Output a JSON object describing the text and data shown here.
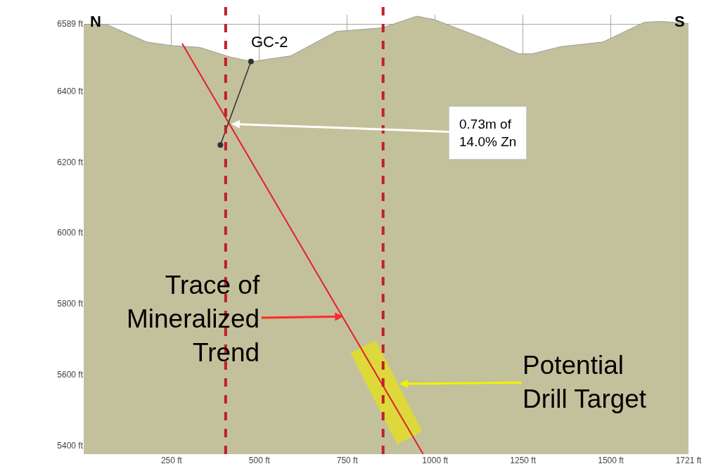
{
  "chart_data": {
    "type": "line",
    "xlim": [
      0,
      1721
    ],
    "ylim": [
      5376,
      6615
    ],
    "xticks": [
      {
        "value": 250,
        "label": "250 ft"
      },
      {
        "value": 500,
        "label": "500 ft"
      },
      {
        "value": 750,
        "label": "750 ft"
      },
      {
        "value": 1000,
        "label": "1000 ft"
      },
      {
        "value": 1250,
        "label": "1250 ft"
      },
      {
        "value": 1500,
        "label": "1500 ft"
      },
      {
        "value": 1721,
        "label": "1721 ft"
      }
    ],
    "yticks": [
      {
        "value": 5400,
        "label": "5400 ft"
      },
      {
        "value": 5600,
        "label": "5600 ft"
      },
      {
        "value": 5800,
        "label": "5800 ft"
      },
      {
        "value": 6000,
        "label": "6000 ft"
      },
      {
        "value": 6200,
        "label": "6200 ft"
      },
      {
        "value": 6400,
        "label": "6400 ft"
      },
      {
        "value": 6589,
        "label": "6589 ft"
      }
    ],
    "grid": true,
    "series": [
      {
        "type": "area",
        "color": "#c3c19b",
        "x": [
          0,
          64,
          180,
          250,
          330,
          420,
          479,
          589,
          719,
          849,
          948,
          999,
          1138,
          1238,
          1277,
          1357,
          1477,
          1507,
          1596,
          1646,
          1721
        ],
        "values": [
          6588,
          6588,
          6538,
          6528,
          6523,
          6495,
          6483,
          6499,
          6568,
          6578,
          6611,
          6601,
          6548,
          6505,
          6505,
          6525,
          6538,
          6552,
          6594,
          6596,
          6590
        ]
      },
      {
        "color": "#e6e21a",
        "x": [
          795,
          928
        ],
        "values": [
          5679,
          5422
        ]
      },
      {
        "color": "#e02030",
        "x": [
          280,
          966
        ],
        "values": [
          6534,
          5376
        ]
      },
      {
        "color": "#333333",
        "marker": "circle",
        "x": [
          476,
          389
        ],
        "values": [
          6483,
          6248
        ]
      }
    ],
    "ref_lines": [
      {
        "axis": "x",
        "value": 404,
        "color": "#c0202a",
        "line_style": "dashed"
      },
      {
        "axis": "x",
        "value": 852,
        "color": "#c0202a",
        "line_style": "dashed"
      }
    ],
    "annotations": [
      {
        "text": "GC-2",
        "x": 476,
        "y": 6483
      },
      {
        "text": "0.73m of\n14.0% Zn",
        "x": 420,
        "y": 6307
      },
      {
        "text": "Trace of\nMineralized\nTrend",
        "x": 739,
        "y": 5764
      },
      {
        "text": "Potential\nDrill Target",
        "x": 898,
        "y": 5574
      },
      "N",
      "S"
    ]
  }
}
